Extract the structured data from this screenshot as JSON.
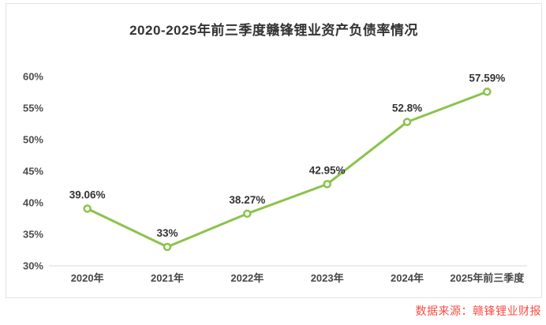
{
  "page": {
    "title": "2020-2025年前三季度赣锋锂业资产负债率情况",
    "source_label": "数据来源：赣锋锂业财报"
  },
  "colors": {
    "line": "#8bc34a",
    "marker_fill": "#ffffff",
    "point_label_text": "#333333",
    "tick_text": "#4d4d4d",
    "axis_line": "#d9d9d9",
    "card_border": "#e4e4e4",
    "title_text": "#333333",
    "source_text": "#fa4b42",
    "background": "#ffffff"
  },
  "chart_data": {
    "type": "line",
    "title": "2020-2025年前三季度赣锋锂业资产负债率情况",
    "categories": [
      "2020年",
      "2021年",
      "2022年",
      "2023年",
      "2024年",
      "2025年前三季度"
    ],
    "values": [
      39.06,
      33,
      38.27,
      42.95,
      52.8,
      57.59
    ],
    "point_labels": [
      "39.06%",
      "33%",
      "38.27%",
      "42.95%",
      "52.8%",
      "57.59%"
    ],
    "y_ticks": [
      {
        "value": 60,
        "label": "60%"
      },
      {
        "value": 55,
        "label": "55%"
      },
      {
        "value": 50,
        "label": "50%"
      },
      {
        "value": 45,
        "label": "45%"
      },
      {
        "value": 40,
        "label": "40%"
      },
      {
        "value": 35,
        "label": "35%"
      },
      {
        "value": 30,
        "label": "30%"
      }
    ],
    "ylim": [
      30,
      60
    ],
    "xlabel": "",
    "ylabel": "",
    "grid": false,
    "legend_position": "none",
    "annotations": "数据来源：赣锋锂业财报"
  }
}
